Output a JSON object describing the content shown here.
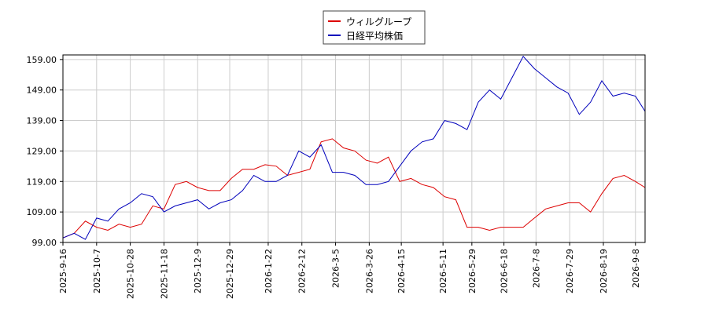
{
  "chart_data": {
    "type": "line",
    "x": [
      "2025-9-16",
      "2025-9-23",
      "2025-9-30",
      "2025-10-7",
      "2025-10-14",
      "2025-10-21",
      "2025-10-28",
      "2025-11-4",
      "2025-11-11",
      "2025-11-18",
      "2025-11-25",
      "2025-12-2",
      "2025-12-9",
      "2025-12-16",
      "2025-12-23",
      "2025-12-30",
      "2026-1-6",
      "2026-1-13",
      "2026-1-20",
      "2026-1-27",
      "2026-2-3",
      "2026-2-10",
      "2026-2-17",
      "2026-2-24",
      "2026-3-3",
      "2026-3-10",
      "2026-3-17",
      "2026-3-24",
      "2026-3-31",
      "2026-4-7",
      "2026-4-14",
      "2026-4-21",
      "2026-4-28",
      "2026-5-5",
      "2026-5-12",
      "2026-5-19",
      "2026-5-26",
      "2026-6-2",
      "2026-6-9",
      "2026-6-16",
      "2026-6-23",
      "2026-6-30",
      "2026-7-7",
      "2026-7-14",
      "2026-7-21",
      "2026-7-28",
      "2026-8-4",
      "2026-8-11",
      "2026-8-18",
      "2026-8-25",
      "2026-9-1",
      "2026-9-8",
      "2026-9-14"
    ],
    "series": [
      {
        "name": "ウィルグループ",
        "color": "#dd0000",
        "values": [
          100.5,
          102,
          106,
          104,
          103,
          105,
          104,
          105,
          111,
          110,
          118,
          119,
          117,
          116,
          116,
          120,
          123,
          123,
          124.5,
          124,
          121,
          122,
          123,
          132,
          133,
          130,
          129,
          126,
          125,
          127,
          119,
          120,
          118,
          117,
          114,
          113,
          104,
          104,
          103,
          104,
          104,
          104,
          107,
          110,
          111,
          112,
          112,
          109,
          115,
          120,
          121,
          119,
          117
        ]
      },
      {
        "name": "日経平均株価",
        "color": "#0000bb",
        "values": [
          100.5,
          102,
          100,
          107,
          106,
          110,
          112,
          115,
          114,
          109,
          111,
          112,
          113,
          110,
          112,
          113,
          116,
          121,
          119,
          119,
          121,
          129,
          127,
          131,
          122,
          122,
          121,
          118,
          118,
          119,
          124,
          129,
          132,
          133,
          139,
          138,
          136,
          145,
          149,
          146,
          153,
          160,
          156,
          153,
          150,
          148,
          141,
          145,
          152,
          147,
          148,
          147,
          142
        ]
      }
    ],
    "xlim": [
      "2025-9-16",
      "2026-9-14"
    ],
    "xticks": [
      "2025-9-16",
      "2025-10-7",
      "2025-10-28",
      "2025-11-18",
      "2025-12-9",
      "2025-12-29",
      "2026-1-22",
      "2026-2-12",
      "2026-3-5",
      "2026-3-26",
      "2026-4-15",
      "2026-5-11",
      "2026-5-29",
      "2026-6-18",
      "2026-7-8",
      "2026-7-29",
      "2026-8-19",
      "2026-9-8"
    ],
    "ylim": [
      99,
      160.5
    ],
    "yticks": [
      {
        "value": 99,
        "label": "99.00"
      },
      {
        "value": 109,
        "label": "109.00"
      },
      {
        "value": 119,
        "label": "119.00"
      },
      {
        "value": 129,
        "label": "129.00"
      },
      {
        "value": 139,
        "label": "139.00"
      },
      {
        "value": 149,
        "label": "149.00"
      },
      {
        "value": 159,
        "label": "159.00"
      }
    ],
    "grid": true
  }
}
